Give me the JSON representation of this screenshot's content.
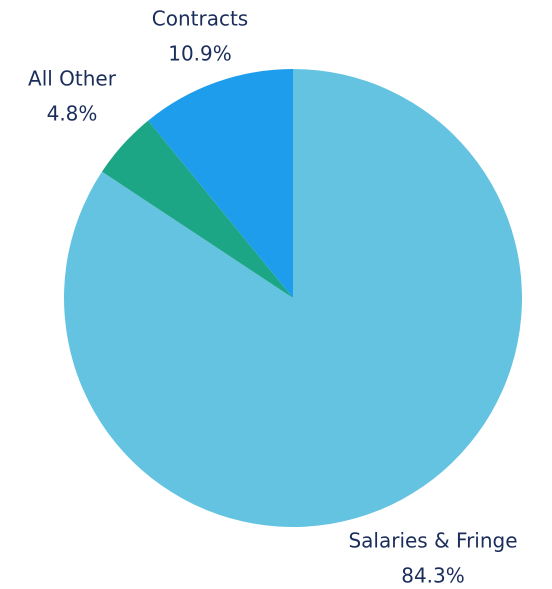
{
  "chart_data": {
    "type": "pie",
    "categories": [
      "Salaries & Fringe",
      "All Other",
      "Contracts"
    ],
    "values": [
      84.3,
      4.8,
      10.9
    ],
    "value_labels": [
      "84.3%",
      "4.8%",
      "10.9%"
    ],
    "colors": [
      "#64c3e0",
      "#1ca685",
      "#1f9ded"
    ]
  }
}
